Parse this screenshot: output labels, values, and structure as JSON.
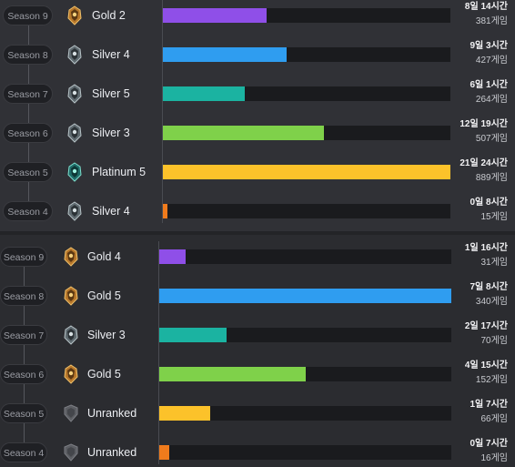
{
  "colors": {
    "purple": "#8f4fe8",
    "blue": "#2f9df0",
    "teal": "#1bb3a1",
    "green": "#7fd14a",
    "yellow": "#fcc22a",
    "orange": "#f07b1c"
  },
  "top": {
    "rows": [
      {
        "season": "Season 9",
        "tier": "Gold 2",
        "icon": "gold-emblem-icon",
        "time": "8일 14시간",
        "games": "381게임",
        "fill": 0.36,
        "color": "purple"
      },
      {
        "season": "Season 8",
        "tier": "Silver 4",
        "icon": "silver-emblem-icon",
        "time": "9일 3시간",
        "games": "427게임",
        "fill": 0.43,
        "color": "blue"
      },
      {
        "season": "Season 7",
        "tier": "Silver 5",
        "icon": "silver-emblem-icon",
        "time": "6일 1시간",
        "games": "264게임",
        "fill": 0.285,
        "color": "teal"
      },
      {
        "season": "Season 6",
        "tier": "Silver 3",
        "icon": "silver-emblem-icon",
        "time": "12일 19시간",
        "games": "507게임",
        "fill": 0.56,
        "color": "green"
      },
      {
        "season": "Season 5",
        "tier": "Platinum 5",
        "icon": "platinum-emblem-icon",
        "time": "21일 24시간",
        "games": "889게임",
        "fill": 1.0,
        "color": "yellow"
      },
      {
        "season": "Season 4",
        "tier": "Silver 4",
        "icon": "silver-emblem-icon",
        "time": "0일 8시간",
        "games": "15게임",
        "fill": 0.015,
        "color": "orange"
      }
    ]
  },
  "bottom": {
    "rows": [
      {
        "season": "Season 9",
        "tier": "Gold 4",
        "icon": "gold-emblem-icon",
        "time": "1일 16시간",
        "games": "31게임",
        "fill": 0.09,
        "color": "purple"
      },
      {
        "season": "Season 8",
        "tier": "Gold 5",
        "icon": "gold-emblem-icon",
        "time": "7일 8시간",
        "games": "340게임",
        "fill": 1.0,
        "color": "blue"
      },
      {
        "season": "Season 7",
        "tier": "Silver 3",
        "icon": "silver-emblem-icon",
        "time": "2일 17시간",
        "games": "70게임",
        "fill": 0.23,
        "color": "teal"
      },
      {
        "season": "Season 6",
        "tier": "Gold 5",
        "icon": "gold-emblem-icon",
        "time": "4일 15시간",
        "games": "152게임",
        "fill": 0.5,
        "color": "green"
      },
      {
        "season": "Season 5",
        "tier": "Unranked",
        "icon": "unranked-emblem-icon",
        "time": "1일 7시간",
        "games": "66게임",
        "fill": 0.175,
        "color": "yellow"
      },
      {
        "season": "Season 4",
        "tier": "Unranked",
        "icon": "unranked-emblem-icon",
        "time": "0일 7시간",
        "games": "16게임",
        "fill": 0.035,
        "color": "orange"
      }
    ]
  }
}
